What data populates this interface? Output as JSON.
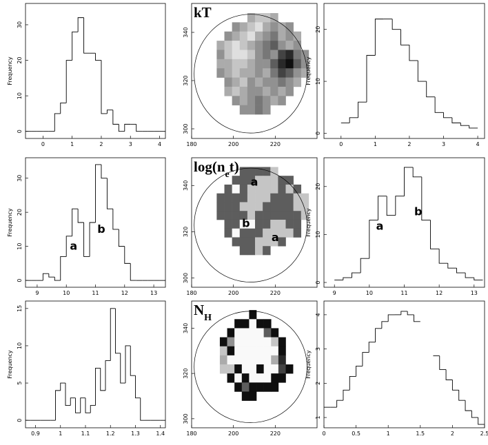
{
  "chart_data": [
    {
      "type": "histogram",
      "ylabel": "Frequency",
      "xlim": [
        -0.6,
        4.2
      ],
      "ylim": [
        -2,
        36
      ],
      "xticks": [
        0,
        1,
        2,
        3,
        4
      ],
      "yticks": [
        0,
        10,
        20,
        30
      ],
      "bins": [
        -0.6,
        -0.4,
        -0.2,
        0,
        0.2,
        0.4,
        0.6,
        0.8,
        1,
        1.2,
        1.4,
        1.6,
        1.8,
        2,
        2.2,
        2.4,
        2.6,
        2.8,
        3,
        3.2,
        3.4,
        3.6,
        3.8,
        4,
        4.2
      ],
      "counts": [
        0,
        0,
        0,
        0,
        0,
        5,
        8,
        20,
        28,
        32,
        22,
        22,
        20,
        5,
        6,
        2,
        0,
        2,
        2,
        0,
        0,
        0,
        0,
        0
      ]
    },
    {
      "type": "image",
      "title_parts": [
        {
          "text": "kT"
        }
      ],
      "xlim": [
        180,
        240
      ],
      "ylim": [
        296,
        352
      ],
      "xticks": [
        180,
        200,
        220
      ],
      "yticks": [
        300,
        320,
        340
      ],
      "extent": [
        192,
        236,
        306,
        348
      ],
      "grid": [
        [
          null,
          null,
          null,
          null,
          6,
          7,
          7,
          6,
          null,
          null,
          null,
          null
        ],
        [
          null,
          null,
          5,
          6,
          7,
          8,
          6,
          5,
          6,
          5,
          null,
          null
        ],
        [
          null,
          5,
          6,
          7,
          8,
          6,
          5,
          4,
          6,
          5,
          6,
          null
        ],
        [
          6,
          7,
          8,
          7,
          6,
          5,
          4,
          3,
          5,
          6,
          5,
          null
        ],
        [
          5,
          7,
          8,
          8,
          7,
          5,
          4,
          5,
          2,
          1,
          4,
          5
        ],
        [
          6,
          6,
          7,
          7,
          6,
          5,
          5,
          3,
          1,
          0,
          3,
          5
        ],
        [
          5,
          6,
          7,
          6,
          6,
          5,
          6,
          4,
          2,
          3,
          5,
          6
        ],
        [
          null,
          5,
          6,
          7,
          5,
          6,
          5,
          5,
          4,
          5,
          6,
          null
        ],
        [
          null,
          6,
          7,
          6,
          5,
          5,
          6,
          5,
          6,
          5,
          null,
          null
        ],
        [
          null,
          null,
          5,
          6,
          5,
          4,
          5,
          6,
          5,
          null,
          null,
          null
        ],
        [
          null,
          null,
          null,
          5,
          5,
          4,
          5,
          null,
          null,
          null,
          null,
          null
        ]
      ]
    },
    {
      "type": "histogram",
      "ylabel": "Frequency",
      "xlim": [
        -0.5,
        4.2
      ],
      "ylim": [
        -1,
        25
      ],
      "xticks": [
        0,
        1,
        2,
        3,
        4
      ],
      "yticks": [
        0,
        10,
        20
      ],
      "bins": [
        0,
        0.25,
        0.5,
        0.75,
        1,
        1.25,
        1.5,
        1.75,
        2,
        2.25,
        2.5,
        2.75,
        3,
        3.25,
        3.5,
        3.75,
        4
      ],
      "counts": [
        2,
        3,
        6,
        15,
        22,
        22,
        20,
        17,
        14,
        10,
        7,
        4,
        3,
        2,
        1.5,
        1
      ]
    },
    {
      "type": "histogram",
      "ylabel": "Frequency",
      "xlim": [
        8.6,
        13.4
      ],
      "ylim": [
        -2,
        36
      ],
      "xticks": [
        9,
        10,
        11,
        12,
        13
      ],
      "yticks": [
        0,
        10,
        20,
        30
      ],
      "bins": [
        8.6,
        8.8,
        9,
        9.2,
        9.4,
        9.6,
        9.8,
        10,
        10.2,
        10.4,
        10.6,
        10.8,
        11,
        11.2,
        11.4,
        11.6,
        11.8,
        12,
        12.2,
        12.4,
        12.6,
        12.8,
        13,
        13.2,
        13.4
      ],
      "counts": [
        0,
        0,
        0,
        2,
        1,
        0,
        7,
        13,
        21,
        17,
        7,
        17,
        34,
        30,
        21,
        15,
        10,
        5,
        0,
        0,
        0,
        0,
        0,
        0
      ],
      "annotations": [
        {
          "text": "a",
          "x": 10.25,
          "y": 9
        },
        {
          "text": "b",
          "x": 11.2,
          "y": 14
        }
      ]
    },
    {
      "type": "image",
      "title_parts": [
        {
          "text": "log(n"
        },
        {
          "text": "e",
          "sub": true
        },
        {
          "text": "t)"
        }
      ],
      "xlim": [
        180,
        240
      ],
      "ylim": [
        296,
        352
      ],
      "xticks": [
        180,
        200,
        220
      ],
      "yticks": [
        300,
        320,
        340
      ],
      "extent": [
        192,
        236,
        310,
        348
      ],
      "grid": [
        [
          null,
          null,
          null,
          3,
          3,
          3,
          3,
          7,
          null,
          null,
          null,
          null
        ],
        [
          null,
          null,
          3,
          3,
          3,
          7,
          7,
          7,
          3,
          3,
          null,
          null
        ],
        [
          null,
          3,
          9,
          3,
          7,
          7,
          7,
          7,
          3,
          7,
          3,
          null
        ],
        [
          3,
          3,
          3,
          3,
          7,
          7,
          7,
          3,
          3,
          3,
          7,
          7
        ],
        [
          3,
          3,
          3,
          7,
          7,
          7,
          3,
          3,
          3,
          3,
          7,
          7
        ],
        [
          3,
          3,
          3,
          3,
          7,
          3,
          3,
          3,
          3,
          3,
          3,
          7
        ],
        [
          null,
          3,
          3,
          9,
          9,
          3,
          3,
          7,
          7,
          3,
          3,
          null
        ],
        [
          null,
          3,
          9,
          3,
          3,
          3,
          7,
          7,
          7,
          7,
          3,
          null
        ],
        [
          null,
          null,
          3,
          3,
          3,
          7,
          7,
          7,
          3,
          null,
          null,
          null
        ],
        [
          null,
          null,
          null,
          3,
          3,
          7,
          3,
          null,
          null,
          null,
          null,
          null
        ]
      ],
      "annotations": [
        {
          "text": "a",
          "x": 210,
          "y": 340
        },
        {
          "text": "b",
          "x": 206,
          "y": 322
        },
        {
          "text": "a",
          "x": 220,
          "y": 316
        }
      ]
    },
    {
      "type": "histogram",
      "ylabel": "Frequency",
      "xlim": [
        8.7,
        13.3
      ],
      "ylim": [
        -1,
        26
      ],
      "xticks": [
        9,
        10,
        11,
        12,
        13
      ],
      "yticks": [
        0,
        10,
        20
      ],
      "bins": [
        9,
        9.25,
        9.5,
        9.75,
        10,
        10.25,
        10.5,
        10.75,
        11,
        11.25,
        11.5,
        11.75,
        12,
        12.25,
        12.5,
        12.75,
        13,
        13.25
      ],
      "counts": [
        0.5,
        1,
        2,
        5,
        13,
        18,
        14,
        18,
        24,
        22,
        13,
        7,
        4,
        3,
        2,
        1,
        0.5
      ],
      "annotations": [
        {
          "text": "a",
          "x": 10.3,
          "y": 11
        },
        {
          "text": "b",
          "x": 11.4,
          "y": 14
        }
      ]
    },
    {
      "type": "histogram",
      "ylabel": "Frequency",
      "xlim": [
        0.86,
        1.42
      ],
      "ylim": [
        -1,
        16
      ],
      "xticks": [
        0.9,
        1,
        1.1,
        1.2,
        1.3,
        1.4
      ],
      "yticks": [
        0,
        5,
        10,
        15
      ],
      "bins": [
        0.86,
        0.88,
        0.9,
        0.92,
        0.94,
        0.96,
        0.98,
        1,
        1.02,
        1.04,
        1.06,
        1.08,
        1.1,
        1.12,
        1.14,
        1.16,
        1.18,
        1.2,
        1.22,
        1.24,
        1.26,
        1.28,
        1.3,
        1.32,
        1.34,
        1.36,
        1.38,
        1.4,
        1.42
      ],
      "counts": [
        0,
        0,
        0,
        0,
        0,
        0,
        4,
        5,
        2,
        3,
        1,
        3,
        1,
        2,
        7,
        4,
        8,
        15,
        9,
        5,
        10,
        6,
        3,
        0,
        0,
        0,
        0,
        0
      ]
    },
    {
      "type": "image",
      "title_parts": [
        {
          "text": "N"
        },
        {
          "text": "H",
          "sub": true
        }
      ],
      "xlim": [
        180,
        240
      ],
      "ylim": [
        296,
        352
      ],
      "xticks": [
        180,
        200,
        220
      ],
      "yticks": [
        300,
        320,
        340
      ],
      "extent": [
        190,
        232,
        308,
        348
      ],
      "grid": [
        [
          null,
          null,
          null,
          null,
          null,
          0,
          null,
          null,
          null,
          null,
          null,
          null
        ],
        [
          null,
          null,
          null,
          0,
          0,
          9,
          0,
          0,
          null,
          null,
          null,
          null
        ],
        [
          null,
          null,
          0,
          9,
          9,
          9,
          9,
          3,
          0,
          null,
          null,
          null
        ],
        [
          null,
          0,
          5,
          9,
          9,
          9,
          9,
          9,
          7,
          0,
          null,
          null
        ],
        [
          null,
          7,
          0,
          9,
          9,
          9,
          9,
          9,
          9,
          0,
          null,
          null
        ],
        [
          null,
          6,
          9,
          9,
          9,
          9,
          9,
          9,
          6,
          1,
          null,
          null
        ],
        [
          null,
          7,
          7,
          0,
          9,
          9,
          0,
          9,
          9,
          2,
          0,
          null
        ],
        [
          null,
          null,
          0,
          9,
          0,
          9,
          9,
          9,
          0,
          0,
          null,
          null
        ],
        [
          null,
          null,
          null,
          0,
          3,
          0,
          0,
          0,
          0,
          null,
          null,
          null
        ],
        [
          null,
          null,
          null,
          null,
          0,
          0,
          null,
          null,
          null,
          null,
          null,
          null
        ]
      ]
    },
    {
      "type": "histogram",
      "ylabel": "Frequency",
      "xlim": [
        0,
        2.5
      ],
      "ylim": [
        0.7,
        4.4
      ],
      "xticks": [
        0,
        0.5,
        1,
        1.5,
        2,
        2.5
      ],
      "yticks": [
        1,
        2,
        3,
        4
      ],
      "bins": [
        0,
        0.1,
        0.2,
        0.3,
        0.4,
        0.5,
        0.6,
        0.7,
        0.8,
        0.9,
        1,
        1.1,
        1.2,
        1.3,
        1.4,
        1.5,
        1.6,
        1.7,
        1.8,
        1.9,
        2,
        2.1,
        2.2,
        2.3,
        2.4,
        2.5
      ],
      "counts": [
        1.3,
        1.3,
        1.5,
        1.8,
        2.2,
        2.5,
        2.9,
        3.2,
        3.6,
        3.8,
        4.0,
        4.0,
        4.1,
        4.0,
        3.8,
        null,
        null,
        2.8,
        2.4,
        2.1,
        1.8,
        1.5,
        1.2,
        1.0,
        0.8
      ]
    }
  ]
}
